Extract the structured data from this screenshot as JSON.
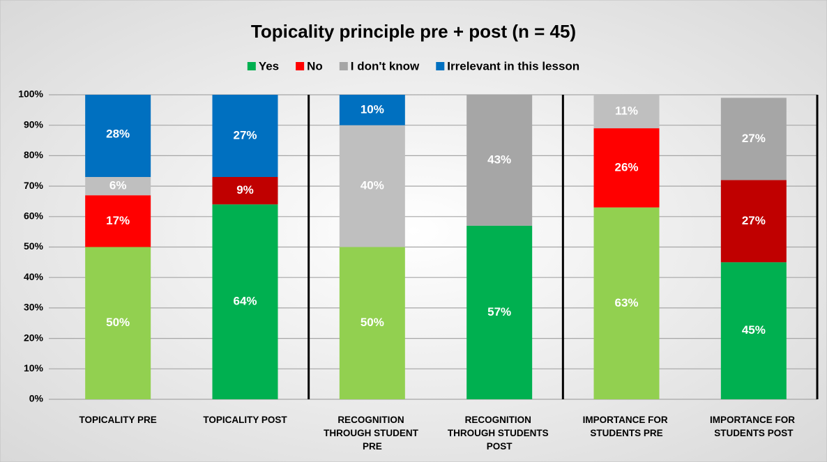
{
  "chart_data": {
    "type": "stacked_bar",
    "title": "Topicality principle pre + post (n = 45)",
    "categories": [
      "TOPICALITY PRE",
      "TOPICALITY POST",
      "RECOGNITION THROUGH STUDENT PRE",
      "RECOGNITION THROUGH STUDENTS POST",
      "IMPORTANCE FOR STUDENTS PRE",
      "IMPORTANCE FOR STUDENTS POST"
    ],
    "series": [
      {
        "name": "Yes",
        "color": "#00b050",
        "colors": [
          "#92d050",
          "#00b050",
          "#92d050",
          "#00b050",
          "#92d050",
          "#00b050"
        ],
        "values": [
          50,
          64,
          50,
          57,
          63,
          45
        ],
        "value_labels": [
          "50%",
          "64%",
          "50%",
          "57%",
          "63%",
          "45%"
        ]
      },
      {
        "name": "No",
        "color": "#ff0000",
        "colors": [
          "#ff0000",
          "#c00000",
          "#ff0000",
          "#c00000",
          "#ff0000",
          "#c00000"
        ],
        "values": [
          17,
          9,
          null,
          null,
          26,
          27
        ],
        "value_labels": [
          "17%",
          "9%",
          null,
          null,
          "26%",
          "27%"
        ]
      },
      {
        "name": "I don't know",
        "color": "#a6a6a6",
        "colors": [
          "#bfbfbf",
          "#a6a6a6",
          "#bfbfbf",
          "#a6a6a6",
          "#bfbfbf",
          "#a6a6a6"
        ],
        "values": [
          6,
          null,
          40,
          43,
          11,
          27
        ],
        "value_labels": [
          "6%",
          null,
          "40%",
          "43%",
          "11%",
          "27%"
        ]
      },
      {
        "name": "Irrelevant in this lesson",
        "color": "#0070c0",
        "colors": [
          "#0070c0",
          "#0070c0",
          "#0070c0",
          "#0070c0",
          "#0070c0",
          "#0070c0"
        ],
        "values": [
          28,
          27,
          10,
          null,
          null,
          null
        ],
        "value_labels": [
          "28%",
          "27%",
          "10%",
          null,
          null,
          null
        ]
      }
    ],
    "ylim": [
      0,
      100
    ],
    "yticks": [
      {
        "value": 0,
        "label": "0%"
      },
      {
        "value": 10,
        "label": "10%"
      },
      {
        "value": 20,
        "label": "20%"
      },
      {
        "value": 30,
        "label": "30%"
      },
      {
        "value": 40,
        "label": "40%"
      },
      {
        "value": 50,
        "label": "50%"
      },
      {
        "value": 60,
        "label": "60%"
      },
      {
        "value": 70,
        "label": "70%"
      },
      {
        "value": 80,
        "label": "80%"
      },
      {
        "value": 90,
        "label": "90%"
      },
      {
        "value": 100,
        "label": "100%"
      }
    ],
    "grid": true,
    "legend": "top"
  }
}
